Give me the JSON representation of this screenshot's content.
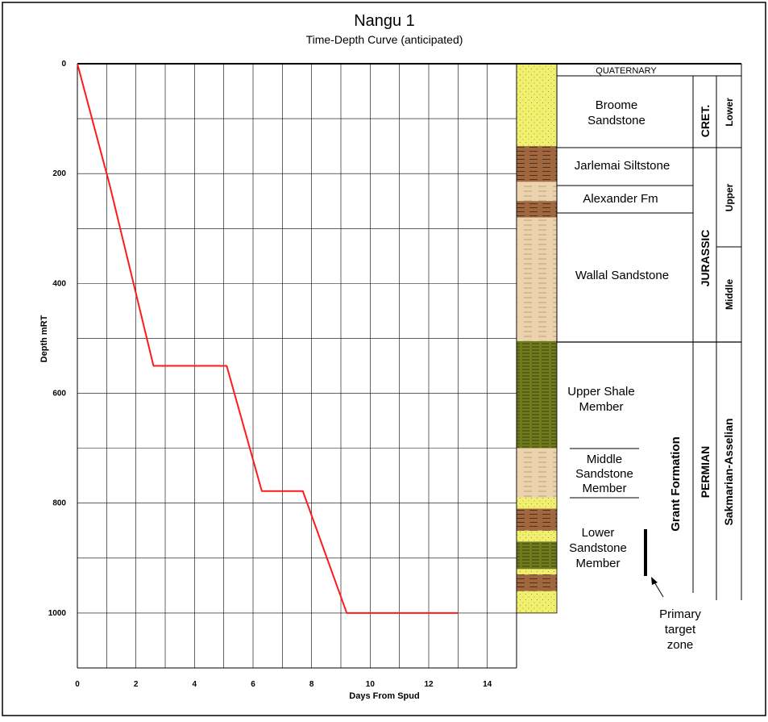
{
  "title": "Nangu 1",
  "subtitle": "Time-Depth Curve  (anticipated)",
  "colors": {
    "curve": "#ff1a1a",
    "sandstone_yellow": "#f1f06e",
    "sandstone_tan": "#ecd3ad",
    "siltstone_brown": "#a0663e",
    "shale_olive": "#6f7a1c"
  },
  "chart_data": {
    "type": "line",
    "xlabel": "Days From Spud",
    "ylabel": "Depth mRT",
    "xlim": [
      0,
      15
    ],
    "ylim": [
      0,
      1100
    ],
    "y_inverted": true,
    "grid": true,
    "x_ticks": [
      0,
      2,
      4,
      6,
      8,
      10,
      12,
      14
    ],
    "y_ticks": [
      0,
      200,
      400,
      600,
      800,
      1000
    ],
    "series": [
      {
        "x": [
          0,
          1.1,
          2.6,
          5.1,
          6.3,
          7.7,
          9.2,
          13.0
        ],
        "y": [
          0,
          220,
          550,
          550,
          778,
          778,
          1000,
          1000
        ]
      }
    ]
  },
  "column": {
    "lithology": [
      {
        "top": 0,
        "base": 150,
        "type": "sandstone_yellow"
      },
      {
        "top": 150,
        "base": 215,
        "type": "siltstone_brown"
      },
      {
        "top": 215,
        "base": 250,
        "type": "sandstone_tan"
      },
      {
        "top": 250,
        "base": 280,
        "type": "siltstone_brown"
      },
      {
        "top": 280,
        "base": 505,
        "type": "sandstone_tan"
      },
      {
        "top": 505,
        "base": 700,
        "type": "shale_olive"
      },
      {
        "top": 700,
        "base": 790,
        "type": "sandstone_tan"
      },
      {
        "top": 790,
        "base": 810,
        "type": "sandstone_yellow"
      },
      {
        "top": 810,
        "base": 850,
        "type": "siltstone_brown"
      },
      {
        "top": 850,
        "base": 870,
        "type": "sandstone_yellow"
      },
      {
        "top": 870,
        "base": 920,
        "type": "shale_olive"
      },
      {
        "top": 920,
        "base": 930,
        "type": "sandstone_yellow"
      },
      {
        "top": 930,
        "base": 960,
        "type": "siltstone_brown"
      },
      {
        "top": 960,
        "base": 1000,
        "type": "sandstone_yellow"
      }
    ],
    "formations": {
      "quaternary": "QUATERNARY",
      "broome": [
        "Broome",
        "Sandstone"
      ],
      "jarlemai": "Jarlemai Siltstone",
      "alexander": "Alexander Fm",
      "wallal": "Wallal Sandstone",
      "upper_shale": [
        "Upper Shale",
        "Member"
      ],
      "middle_sandstone": [
        "Middle",
        "Sandstone",
        "Member"
      ],
      "lower_sandstone": [
        "Lower",
        "Sandstone",
        "Member"
      ],
      "grant": "Grant Formation"
    },
    "periods": {
      "cret": "CRET.",
      "jurassic": "JURASSIC",
      "permian": "PERMIAN"
    },
    "epochs": {
      "lower": "Lower",
      "upper": "Upper",
      "middle": "Middle",
      "sakmarian": "Sakmarian-Asselian"
    },
    "target_label": [
      "Primary",
      "target",
      "zone"
    ]
  }
}
